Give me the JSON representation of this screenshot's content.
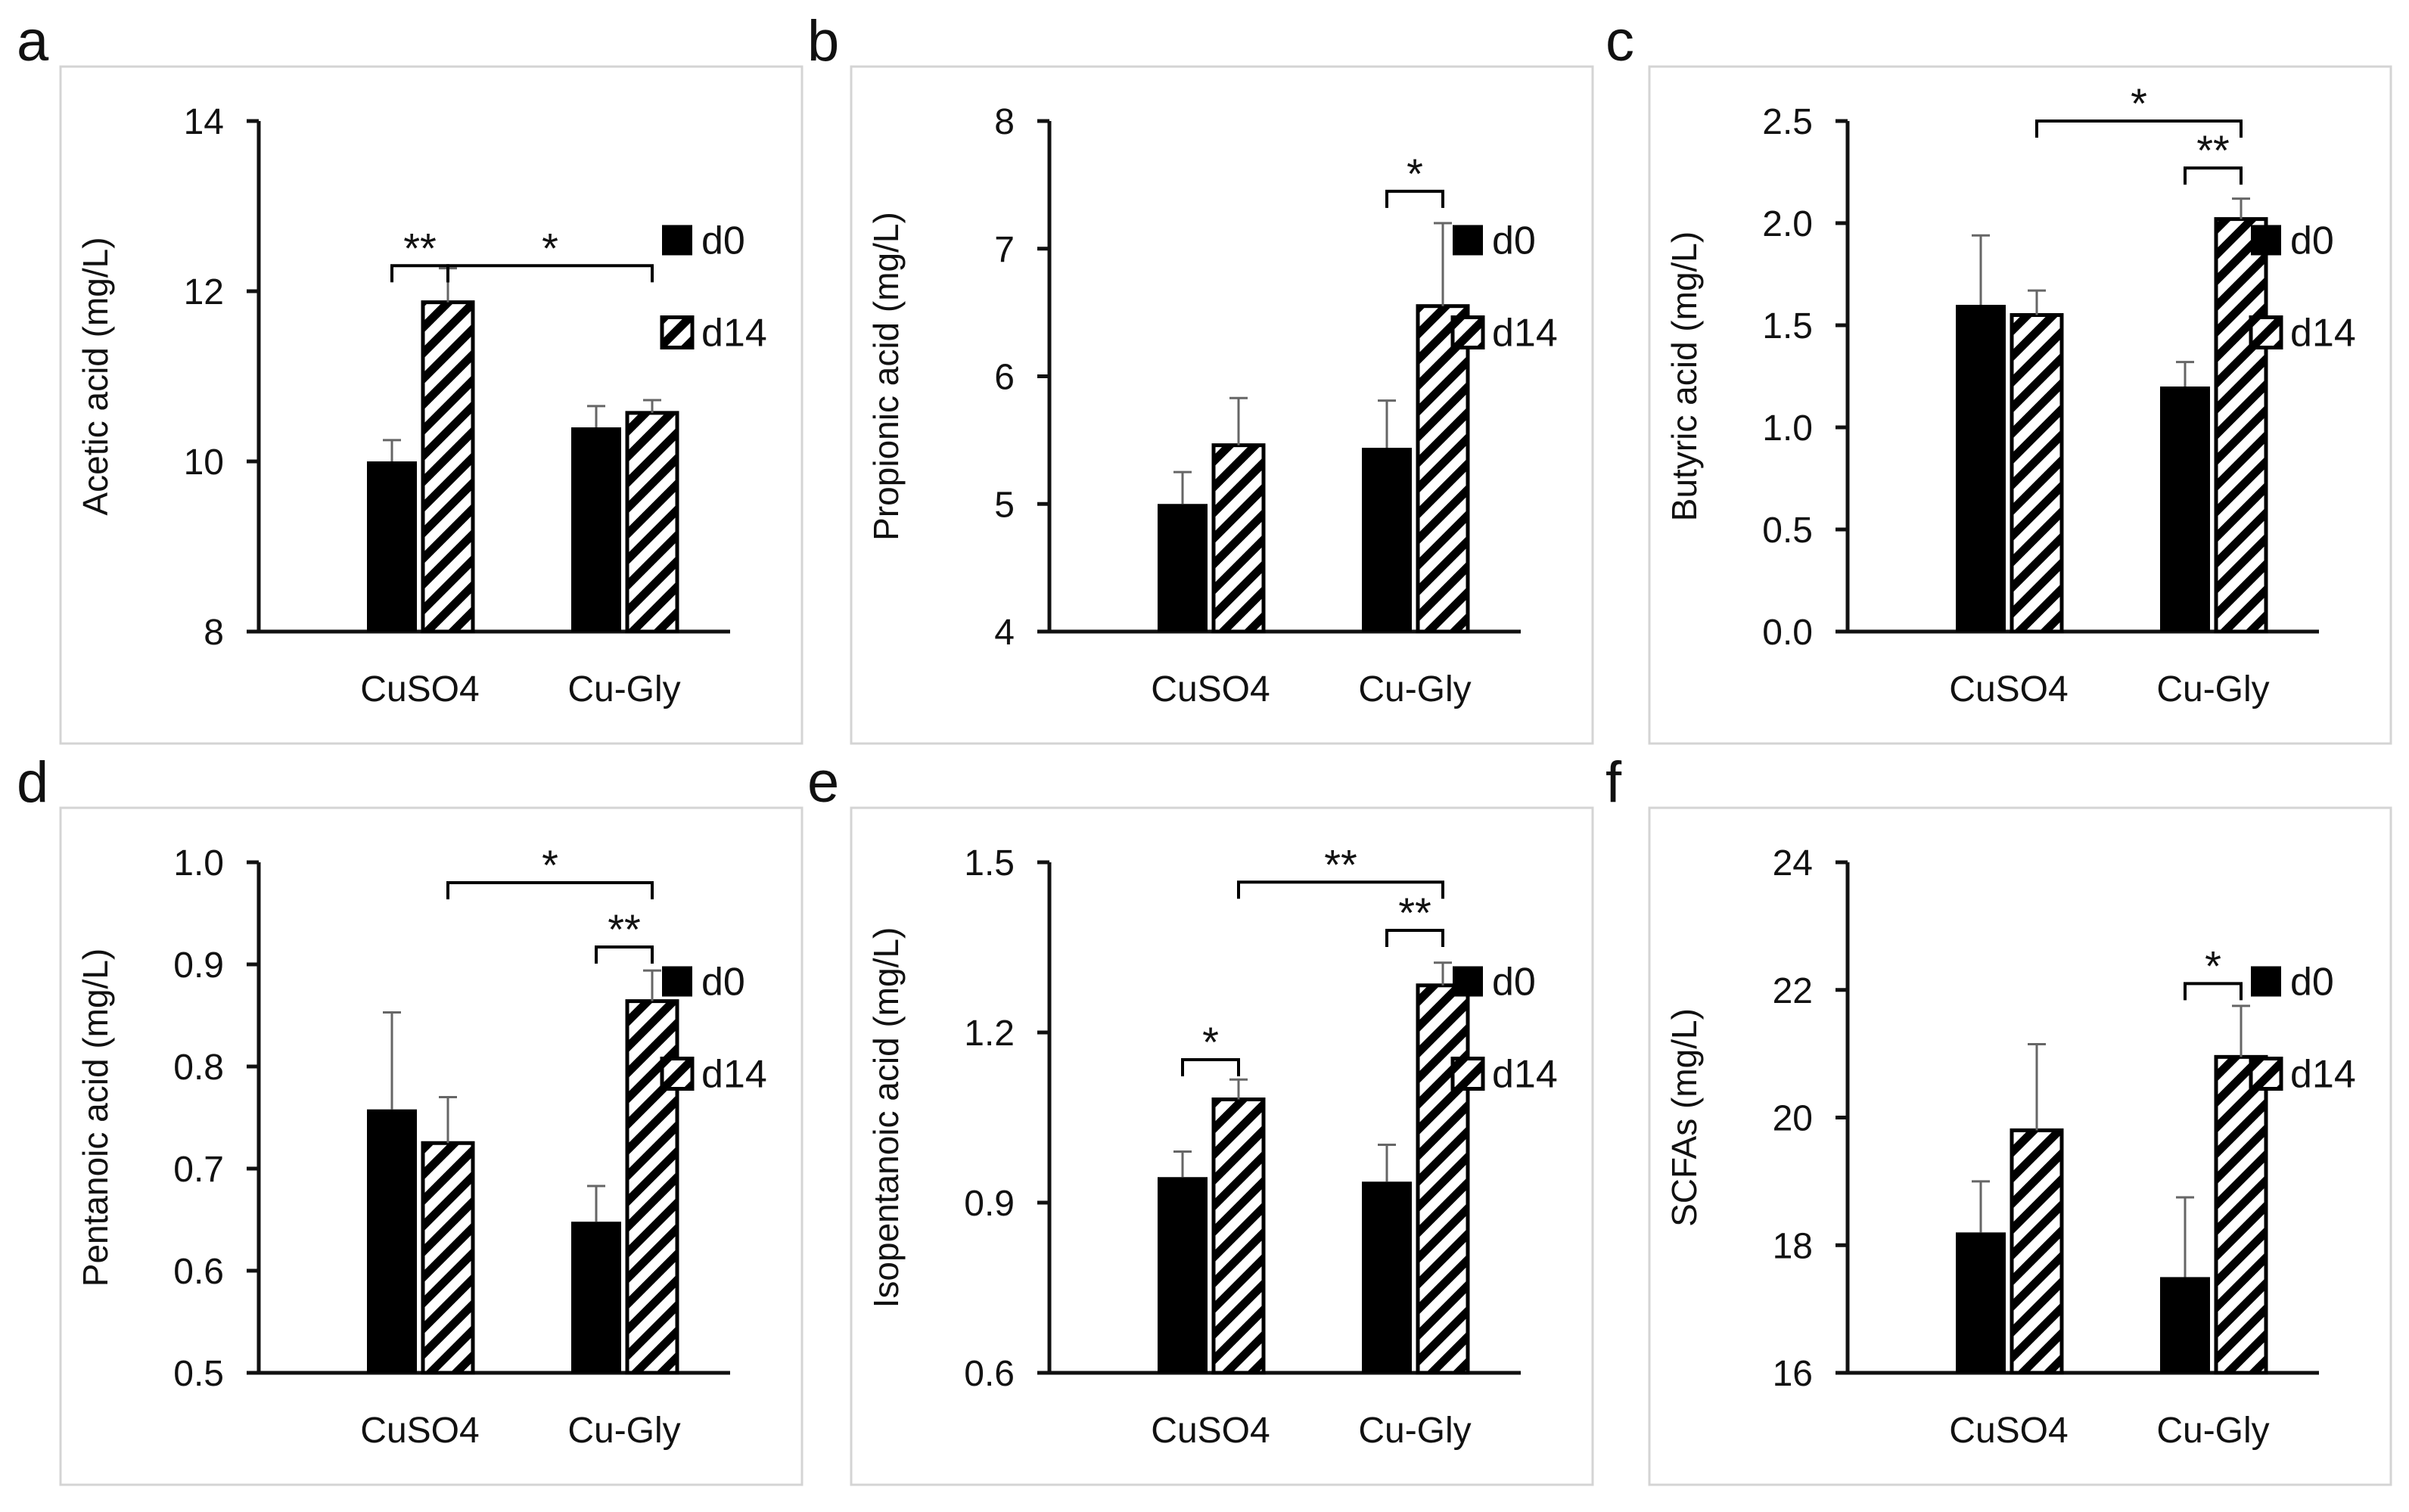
{
  "figure": {
    "legend": {
      "d0": "d0",
      "d14": "d14"
    }
  },
  "chart_data": [
    {
      "panel": "a",
      "type": "bar",
      "ylabel": "Acetic acid (mg/L)",
      "categories": [
        "CuSO4",
        "Cu-Gly"
      ],
      "ylim": [
        8,
        14
      ],
      "yticks": [
        8,
        10,
        12,
        14
      ],
      "tick_labels": [
        "8",
        "10",
        "12",
        "14"
      ],
      "series": [
        {
          "name": "d0",
          "values": [
            10.0,
            10.4
          ],
          "errors": [
            0.25,
            0.25
          ]
        },
        {
          "name": "d14",
          "values": [
            11.87,
            10.57
          ],
          "errors": [
            0.4,
            0.15
          ]
        }
      ],
      "significance": [
        {
          "from": [
            0,
            0
          ],
          "to": [
            0,
            1
          ],
          "level": 12.3,
          "label": "**"
        },
        {
          "from": [
            0,
            1
          ],
          "to": [
            1,
            1
          ],
          "level": 12.3,
          "label": "*"
        }
      ]
    },
    {
      "panel": "b",
      "type": "bar",
      "ylabel": "Propionic acid (mg/L)",
      "categories": [
        "CuSO4",
        "Cu-Gly"
      ],
      "ylim": [
        4,
        8
      ],
      "yticks": [
        4,
        5,
        6,
        7,
        8
      ],
      "tick_labels": [
        "4",
        "5",
        "6",
        "7",
        "8"
      ],
      "series": [
        {
          "name": "d0",
          "values": [
            5.0,
            5.44
          ],
          "errors": [
            0.25,
            0.37
          ]
        },
        {
          "name": "d14",
          "values": [
            5.46,
            6.55
          ],
          "errors": [
            0.37,
            0.65
          ]
        }
      ],
      "significance": [
        {
          "from": [
            1,
            0
          ],
          "to": [
            1,
            1
          ],
          "level": 7.45,
          "label": "*"
        }
      ]
    },
    {
      "panel": "c",
      "type": "bar",
      "ylabel": "Butyric acid (mg/L)",
      "categories": [
        "CuSO4",
        "Cu-Gly"
      ],
      "ylim": [
        0,
        2.5
      ],
      "yticks": [
        0,
        0.5,
        1.0,
        1.5,
        2.0,
        2.5
      ],
      "tick_labels": [
        "0.0",
        "0.5",
        "1.0",
        "1.5",
        "2.0",
        "2.5"
      ],
      "series": [
        {
          "name": "d0",
          "values": [
            1.6,
            1.2
          ],
          "errors": [
            0.34,
            0.12
          ]
        },
        {
          "name": "d14",
          "values": [
            1.55,
            2.02
          ],
          "errors": [
            0.12,
            0.1
          ]
        }
      ],
      "significance": [
        {
          "from": [
            0,
            1
          ],
          "to": [
            1,
            1
          ],
          "level": 2.5,
          "label": "*"
        },
        {
          "from": [
            1,
            0
          ],
          "to": [
            1,
            1
          ],
          "level": 2.27,
          "label": "**"
        }
      ]
    },
    {
      "panel": "d",
      "type": "bar",
      "ylabel": "Pentanoic acid (mg/L)",
      "categories": [
        "CuSO4",
        "Cu-Gly"
      ],
      "ylim": [
        0.5,
        1.0
      ],
      "yticks": [
        0.5,
        0.6,
        0.7,
        0.8,
        0.9,
        1.0
      ],
      "tick_labels": [
        "0.5",
        "0.6",
        "0.7",
        "0.8",
        "0.9",
        "1.0"
      ],
      "series": [
        {
          "name": "d0",
          "values": [
            0.758,
            0.648
          ],
          "errors": [
            0.095,
            0.035
          ]
        },
        {
          "name": "d14",
          "values": [
            0.725,
            0.864
          ],
          "errors": [
            0.045,
            0.03
          ]
        }
      ],
      "significance": [
        {
          "from": [
            0,
            1
          ],
          "to": [
            1,
            1
          ],
          "level": 0.98,
          "label": "*"
        },
        {
          "from": [
            1,
            0
          ],
          "to": [
            1,
            1
          ],
          "level": 0.917,
          "label": "**"
        }
      ]
    },
    {
      "panel": "e",
      "type": "bar",
      "ylabel": "Isopentanoic acid (mg/L)",
      "categories": [
        "CuSO4",
        "Cu-Gly"
      ],
      "ylim": [
        0.6,
        1.5
      ],
      "yticks": [
        0.6,
        0.9,
        1.2,
        1.5
      ],
      "tick_labels": [
        "0.6",
        "0.9",
        "1.2",
        "1.5"
      ],
      "series": [
        {
          "name": "d0",
          "values": [
            0.945,
            0.937
          ],
          "errors": [
            0.045,
            0.065
          ]
        },
        {
          "name": "d14",
          "values": [
            1.082,
            1.283
          ],
          "errors": [
            0.035,
            0.04
          ]
        }
      ],
      "significance": [
        {
          "from": [
            0,
            0
          ],
          "to": [
            0,
            1
          ],
          "level": 1.152,
          "label": "*"
        },
        {
          "from": [
            0,
            1
          ],
          "to": [
            1,
            1
          ],
          "level": 1.465,
          "label": "**"
        },
        {
          "from": [
            1,
            0
          ],
          "to": [
            1,
            1
          ],
          "level": 1.38,
          "label": "**"
        }
      ]
    },
    {
      "panel": "f",
      "type": "bar",
      "ylabel": "SCFAs (mg/L)",
      "categories": [
        "CuSO4",
        "Cu-Gly"
      ],
      "ylim": [
        16,
        24
      ],
      "yticks": [
        16,
        18,
        20,
        22,
        24
      ],
      "tick_labels": [
        "16",
        "18",
        "20",
        "22",
        "24"
      ],
      "series": [
        {
          "name": "d0",
          "values": [
            18.2,
            17.5
          ],
          "errors": [
            0.8,
            1.25
          ]
        },
        {
          "name": "d14",
          "values": [
            19.8,
            20.95
          ],
          "errors": [
            1.35,
            0.8
          ]
        }
      ],
      "significance": [
        {
          "from": [
            1,
            0
          ],
          "to": [
            1,
            1
          ],
          "level": 22.1,
          "label": "*"
        }
      ]
    }
  ]
}
